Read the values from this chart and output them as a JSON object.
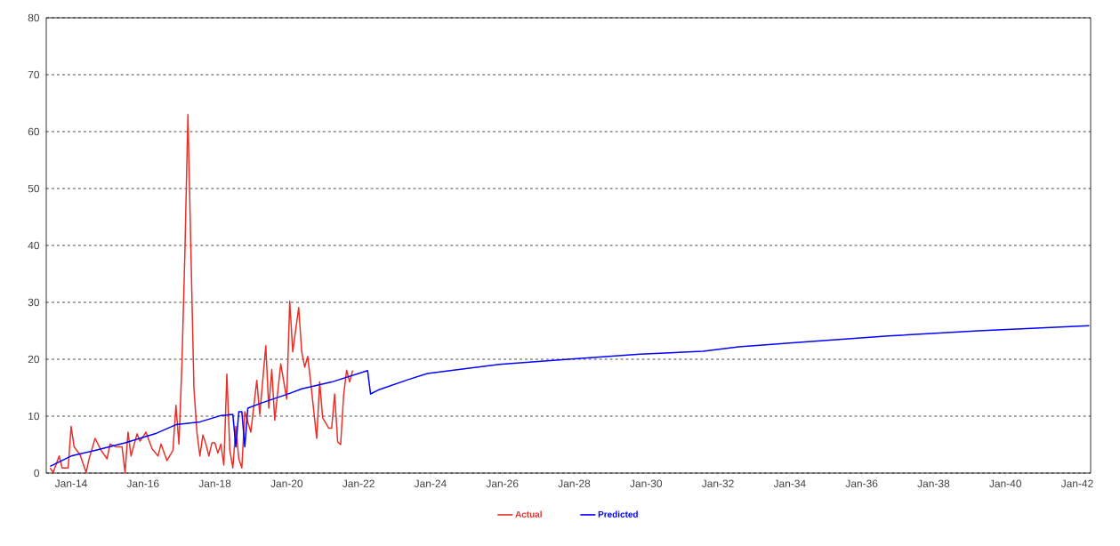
{
  "chart_data": {
    "type": "line",
    "xlim": [
      "2013-04-22",
      "2042-05-15"
    ],
    "ylim": [
      0,
      80
    ],
    "xticks": [
      {
        "value": "2014-01",
        "label": "Jan-14"
      },
      {
        "value": "2016-01",
        "label": "Jan-16"
      },
      {
        "value": "2018-01",
        "label": "Jan-18"
      },
      {
        "value": "2020-01",
        "label": "Jan-20"
      },
      {
        "value": "2022-01",
        "label": "Jan-22"
      },
      {
        "value": "2024-01",
        "label": "Jan-24"
      },
      {
        "value": "2026-01",
        "label": "Jan-26"
      },
      {
        "value": "2028-01",
        "label": "Jan-28"
      },
      {
        "value": "2030-01",
        "label": "Jan-30"
      },
      {
        "value": "2032-01",
        "label": "Jan-32"
      },
      {
        "value": "2034-01",
        "label": "Jan-34"
      },
      {
        "value": "2036-01",
        "label": "Jan-36"
      },
      {
        "value": "2038-01",
        "label": "Jan-38"
      },
      {
        "value": "2040-01",
        "label": "Jan-40"
      },
      {
        "value": "2042-01",
        "label": "Jan-42"
      }
    ],
    "yticks": [
      0,
      10,
      20,
      30,
      40,
      50,
      60,
      70,
      80
    ],
    "grid": "y",
    "legend": "bottom",
    "marker": "none",
    "line_style": "solid",
    "series": [
      {
        "name": "Actual",
        "color": "#e8302a",
        "x": [
          "2013-06",
          "2013-07",
          "2013-09",
          "2013-10",
          "2013-12",
          "2014-01",
          "2014-02",
          "2014-04",
          "2014-06",
          "2014-07",
          "2014-09",
          "2014-11",
          "2015-01",
          "2015-02",
          "2015-04",
          "2015-06",
          "2015-07",
          "2015-08",
          "2015-09",
          "2015-11",
          "2015-12",
          "2016-02",
          "2016-04",
          "2016-06",
          "2016-07",
          "2016-09",
          "2016-11",
          "2016-12",
          "2017-01",
          "2017-02",
          "2017-03",
          "2017-04",
          "2017-05",
          "2017-06",
          "2017-07",
          "2017-08",
          "2017-09",
          "2017-10",
          "2017-11",
          "2017-12",
          "2018-01",
          "2018-02",
          "2018-03",
          "2018-04",
          "2018-05",
          "2018-06",
          "2018-07",
          "2018-08",
          "2018-09",
          "2018-10",
          "2018-11",
          "2019-01",
          "2019-03",
          "2019-04",
          "2019-06",
          "2019-07",
          "2019-08",
          "2019-09",
          "2019-11",
          "2020-01",
          "2020-02",
          "2020-03",
          "2020-05",
          "2020-06",
          "2020-07",
          "2020-08",
          "2020-09",
          "2020-11",
          "2020-12",
          "2021-01",
          "2021-03",
          "2021-04",
          "2021-05",
          "2021-06",
          "2021-07",
          "2021-08",
          "2021-09",
          "2021-10",
          "2021-11"
        ],
        "values": [
          0.9,
          0.1,
          3.0,
          0.9,
          0.9,
          8.2,
          4.6,
          3.2,
          0.1,
          2.5,
          6.1,
          4.0,
          2.5,
          5.1,
          4.6,
          4.6,
          0.1,
          7.2,
          3.0,
          6.9,
          5.6,
          7.2,
          4.3,
          3.0,
          5.1,
          2.2,
          4.0,
          11.9,
          5.1,
          19.2,
          39,
          63,
          39,
          15.0,
          7.2,
          3.0,
          6.7,
          5.1,
          3.0,
          5.3,
          5.3,
          3.5,
          5.1,
          1.4,
          17.4,
          4.0,
          0.9,
          8.2,
          2.5,
          0.9,
          10.8,
          7.2,
          16.3,
          10.3,
          22.4,
          11.4,
          18.2,
          9.3,
          19.2,
          13,
          30.2,
          21.3,
          29.1,
          21.3,
          18.6,
          20.5,
          16.0,
          6.1,
          16.0,
          9.7,
          7.9,
          7.9,
          13.9,
          5.5,
          5.0,
          13.7,
          18.1,
          16.0,
          18.0
        ]
      },
      {
        "name": "Predicted",
        "color": "#0000ff",
        "x": [
          "2013-06",
          "2014-01",
          "2014-09",
          "2015-07",
          "2016-05",
          "2016-12",
          "2017-08",
          "2018-03",
          "2018-07",
          "2018-08",
          "2018-09",
          "2018-10",
          "2018-11",
          "2018-12",
          "2019-05",
          "2020-02",
          "2020-06",
          "2021-04",
          "2022-04",
          "2022-05",
          "2022-08",
          "2023-06",
          "2023-12",
          "2025-12",
          "2027-11",
          "2029-11",
          "2031-08",
          "2032-08",
          "2034-05",
          "2036-10",
          "2039-04",
          "2042-05"
        ],
        "values": [
          1.2,
          3.0,
          4.0,
          5.3,
          6.9,
          8.5,
          9.0,
          10.1,
          10.3,
          4.6,
          10.8,
          10.8,
          4.6,
          11.4,
          12.4,
          14.0,
          14.8,
          16.0,
          18.0,
          13.9,
          14.7,
          16.5,
          17.5,
          19.1,
          20.0,
          20.9,
          21.4,
          22.2,
          23.0,
          24.1,
          25.0,
          25.9
        ]
      }
    ]
  }
}
